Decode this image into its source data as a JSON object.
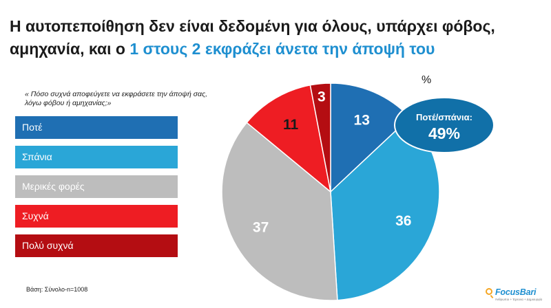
{
  "title": {
    "line1": "Η αυτοπεποίθηση δεν είναι δεδομένη για όλους, υπάρχει φόβος,",
    "line2_plain": "αμηχανία, και ο ",
    "line2_highlight": "1 στους 2 εκφράζει άνετα την άποψή του",
    "highlight_color": "#1e8fd0"
  },
  "question": "« Πόσο συχνά αποφεύγετε να εκφράσετε την άποψή σας, λόγω φόβου ή αμηχανίας;»",
  "unit": "%",
  "base_note": "Βάση: Σύνολο-n=1008",
  "callout": {
    "label": "Ποτέ/σπάνια:",
    "value": "49%",
    "color": "#1170a8"
  },
  "logo": {
    "name": "FocusBari",
    "tagline": "Άνθρωποι + Έρευνα + Δημιουργία"
  },
  "chart_data": {
    "type": "pie",
    "categories": [
      "Ποτέ",
      "Σπάνια",
      "Μερικές φορές",
      "Συχνά",
      "Πολύ συχνά"
    ],
    "values": [
      13,
      36,
      37,
      11,
      3
    ],
    "labels": [
      "13",
      "36",
      "37",
      "11",
      "3"
    ],
    "colors": [
      "#1f6fb3",
      "#2aa6d7",
      "#bdbdbd",
      "#ee1d23",
      "#b40d12"
    ],
    "label_colors": [
      "#ffffff",
      "#ffffff",
      "#ffffff",
      "#1a1a1a",
      "#ffffff"
    ],
    "legend_position": "left",
    "unit": "%"
  }
}
